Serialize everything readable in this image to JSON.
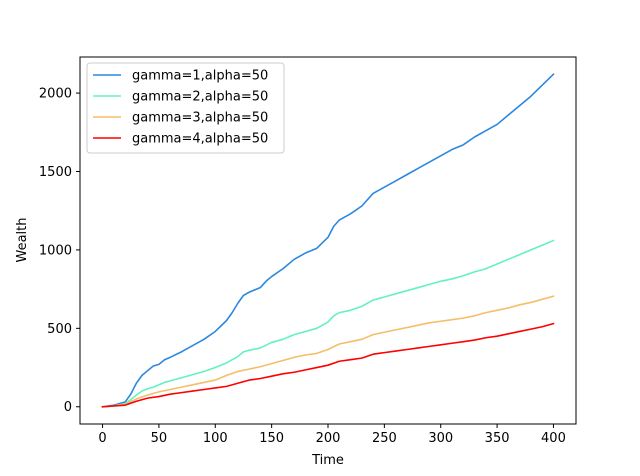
{
  "chart_data": {
    "type": "line",
    "xlabel": "Time",
    "ylabel": "Wealth",
    "xlim": [
      -20,
      420
    ],
    "ylim": [
      -110,
      2230
    ],
    "xticks": [
      0,
      50,
      100,
      150,
      200,
      250,
      300,
      350,
      400
    ],
    "yticks": [
      0,
      500,
      1000,
      1500,
      2000
    ],
    "grid": false,
    "legend_position": "top-left",
    "series": [
      {
        "name": "gamma=1,alpha=50",
        "color": "#2c88de",
        "x": [
          0,
          10,
          20,
          25,
          30,
          35,
          40,
          45,
          50,
          55,
          60,
          70,
          80,
          90,
          100,
          110,
          115,
          120,
          125,
          130,
          140,
          145,
          150,
          160,
          170,
          180,
          190,
          200,
          205,
          210,
          220,
          230,
          240,
          250,
          260,
          270,
          280,
          290,
          300,
          310,
          320,
          330,
          340,
          350,
          360,
          370,
          380,
          390,
          400
        ],
        "values": [
          0,
          10,
          30,
          80,
          150,
          200,
          230,
          260,
          270,
          300,
          315,
          350,
          390,
          430,
          480,
          550,
          600,
          660,
          710,
          730,
          760,
          800,
          830,
          880,
          940,
          980,
          1010,
          1080,
          1150,
          1190,
          1230,
          1280,
          1360,
          1400,
          1440,
          1480,
          1520,
          1560,
          1600,
          1640,
          1670,
          1720,
          1760,
          1800,
          1860,
          1920,
          1980,
          2050,
          2120
        ]
      },
      {
        "name": "gamma=2,alpha=50",
        "color": "#63f2bd",
        "x": [
          0,
          10,
          20,
          25,
          30,
          35,
          40,
          45,
          50,
          55,
          60,
          70,
          80,
          90,
          100,
          110,
          120,
          125,
          130,
          140,
          150,
          160,
          170,
          180,
          190,
          200,
          205,
          210,
          220,
          230,
          240,
          250,
          260,
          270,
          280,
          290,
          300,
          310,
          320,
          330,
          340,
          350,
          360,
          370,
          380,
          390,
          400
        ],
        "values": [
          0,
          5,
          20,
          45,
          75,
          100,
          115,
          125,
          140,
          155,
          165,
          185,
          205,
          225,
          250,
          280,
          320,
          350,
          360,
          375,
          410,
          430,
          460,
          480,
          500,
          540,
          580,
          600,
          615,
          640,
          680,
          700,
          720,
          740,
          760,
          780,
          800,
          815,
          835,
          860,
          880,
          910,
          940,
          970,
          1000,
          1030,
          1060
        ]
      },
      {
        "name": "gamma=3,alpha=50",
        "color": "#f5be68",
        "x": [
          0,
          10,
          20,
          30,
          40,
          50,
          60,
          70,
          80,
          90,
          100,
          110,
          120,
          130,
          140,
          150,
          160,
          170,
          180,
          190,
          200,
          210,
          220,
          230,
          240,
          250,
          260,
          270,
          280,
          290,
          300,
          310,
          320,
          330,
          340,
          350,
          360,
          370,
          380,
          390,
          400
        ],
        "values": [
          0,
          5,
          15,
          50,
          75,
          95,
          110,
          125,
          140,
          155,
          170,
          200,
          225,
          240,
          255,
          275,
          295,
          315,
          330,
          340,
          365,
          400,
          415,
          430,
          460,
          475,
          490,
          505,
          520,
          535,
          545,
          555,
          565,
          580,
          600,
          615,
          630,
          650,
          665,
          685,
          705
        ]
      },
      {
        "name": "gamma=4,alpha=50",
        "color": "#ff0000",
        "x": [
          0,
          10,
          20,
          30,
          40,
          50,
          60,
          70,
          80,
          90,
          100,
          110,
          120,
          130,
          140,
          150,
          160,
          170,
          180,
          190,
          200,
          210,
          220,
          230,
          240,
          250,
          260,
          270,
          280,
          290,
          300,
          310,
          320,
          330,
          340,
          350,
          360,
          370,
          380,
          390,
          400
        ],
        "values": [
          0,
          5,
          10,
          35,
          55,
          65,
          80,
          90,
          100,
          110,
          120,
          130,
          150,
          170,
          180,
          195,
          210,
          220,
          235,
          250,
          265,
          290,
          300,
          310,
          335,
          345,
          355,
          365,
          375,
          385,
          395,
          405,
          415,
          425,
          440,
          450,
          465,
          480,
          495,
          510,
          530
        ]
      }
    ]
  }
}
